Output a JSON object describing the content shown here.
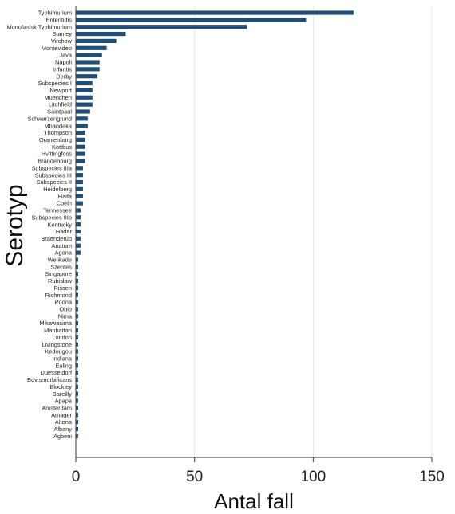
{
  "chart_data": {
    "type": "bar",
    "orientation": "horizontal",
    "title": "",
    "xlabel": "Antal fall",
    "ylabel": "Serotyp",
    "xlim": [
      0,
      150
    ],
    "xticks": [
      0,
      50,
      100,
      150
    ],
    "grid": "vertical",
    "bar_color": "#1f4e79",
    "categories": [
      "Typhimurium",
      "Enteritidis",
      "Monofasisk Typhimurium",
      "Stanley",
      "Virchow",
      "Montevideo",
      "Java",
      "Napoli",
      "Infantis",
      "Derby",
      "Subspecies I",
      "Newport",
      "Muenchen",
      "Litchfield",
      "Saintpaul",
      "Schwarzengrund",
      "Mbandaka",
      "Thompson",
      "Oranienburg",
      "Kottbus",
      "Hvittingfoss",
      "Brandenburg",
      "Subspecies IIIa",
      "Subspecies III",
      "Subspecies II",
      "Heidelberg",
      "Haifa",
      "Coeln",
      "Tennessee",
      "Subspecies IIIb",
      "Kentucky",
      "Hadar",
      "Braenderup",
      "Anatum",
      "Agona",
      "Welikade",
      "Szentes",
      "Singapore",
      "Rubislaw",
      "Rissen",
      "Richmond",
      "Poona",
      "Ohio",
      "Nima",
      "Mikawasima",
      "Manhattan",
      "London",
      "Livingstone",
      "Kedougou",
      "Indiana",
      "Ealing",
      "Duesseldorf",
      "Bovismorbificans",
      "Blockley",
      "Bareilly",
      "Apapa",
      "Amsterdam",
      "Amager",
      "Altona",
      "Albany",
      "Agbeni"
    ],
    "values": [
      117,
      97,
      72,
      21,
      17,
      13,
      11,
      10,
      10,
      9,
      7,
      7,
      7,
      7,
      6,
      5,
      5,
      4,
      4,
      4,
      4,
      4,
      3,
      3,
      3,
      3,
      3,
      3,
      2,
      2,
      2,
      2,
      2,
      2,
      2,
      1,
      1,
      1,
      1,
      1,
      1,
      1,
      1,
      1,
      1,
      1,
      1,
      1,
      1,
      1,
      1,
      1,
      1,
      1,
      1,
      1,
      1,
      1,
      1,
      1,
      1
    ]
  }
}
